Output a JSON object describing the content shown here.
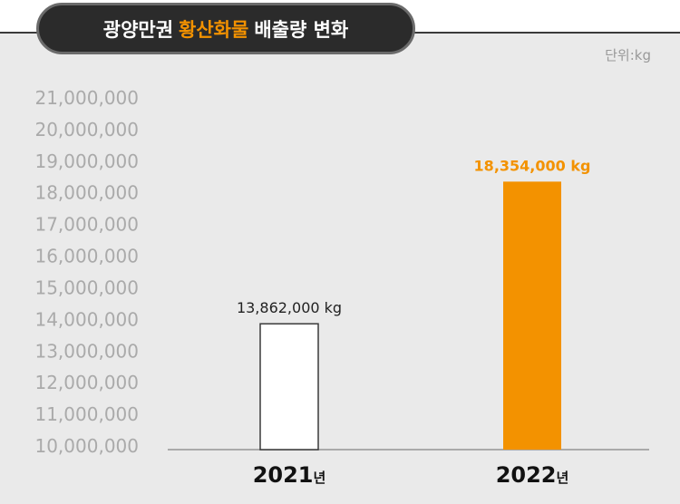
{
  "header": {
    "title_pre": "광양만권",
    "title_highlight": "황산화물",
    "title_post": "배출량 변화",
    "unit": "단위:kg"
  },
  "colors": {
    "accent": "#f39200",
    "bar_2021": "#ffffff",
    "bar_2022": "#f39200",
    "tick_text": "#aaaaaa",
    "panel": "#eaeaea",
    "title_bg": "#2b2b2b"
  },
  "chart_data": {
    "type": "bar",
    "categories": [
      "2021년",
      "2022년"
    ],
    "category_years": [
      "2021",
      "2022"
    ],
    "category_suffix": "년",
    "values": [
      13862000,
      18354000
    ],
    "value_labels": [
      "13,862,000 kg",
      "18,354,000 kg"
    ],
    "ylim": [
      10000000,
      21000000
    ],
    "yticks": [
      10000000,
      11000000,
      12000000,
      13000000,
      14000000,
      15000000,
      16000000,
      17000000,
      18000000,
      19000000,
      20000000,
      21000000
    ],
    "ytick_labels": [
      "10,000,000",
      "11,000,000",
      "12,000,000",
      "13,000,000",
      "14,000,000",
      "15,000,000",
      "16,000,000",
      "17,000,000",
      "18,000,000",
      "19,000,000",
      "20,000,000",
      "21,000,000"
    ],
    "grid": false,
    "legend": "none"
  }
}
